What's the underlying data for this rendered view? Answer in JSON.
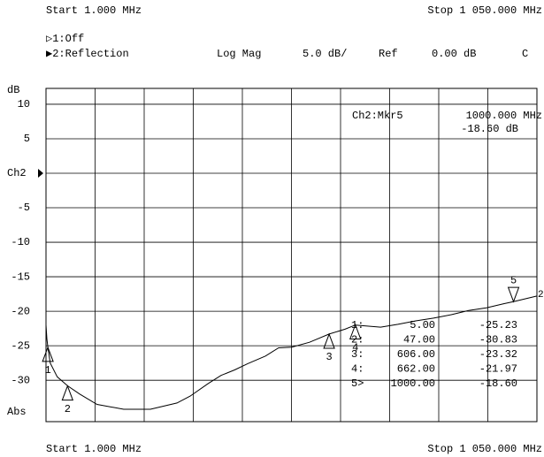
{
  "chart_data": {
    "type": "line",
    "start_label": "Start 1.000 MHz",
    "stop_label": "Stop 1 050.000 MHz",
    "channel1": "▷1:Off",
    "channel2": "▶2:Reflection",
    "format": "Log Mag",
    "scale": "5.0 dB/",
    "ref": "Ref",
    "ref_value": "0.00 dB",
    "coupling": "C",
    "y_unit": "dB",
    "abs_label": "Abs",
    "trace_label": "2",
    "readout": {
      "title": "Ch2:Mkr5",
      "x": "1000.000 MHz",
      "value": "-18.60 dB"
    },
    "xlim": [
      1,
      1050
    ],
    "ylim": [
      -36,
      12.3
    ],
    "yticks": [
      10,
      5,
      {
        "value": 0,
        "label": "Ch2"
      },
      -5,
      -10,
      -15,
      -20,
      -25,
      -30
    ],
    "grid": true,
    "series": [
      {
        "name": "2",
        "color": "#000000",
        "x": [
          1,
          2.9,
          5,
          10,
          25,
          47,
          73,
          110,
          167,
          224,
          281,
          309,
          347,
          375,
          404,
          432,
          470,
          498,
          526,
          564,
          606,
          640,
          662,
          716,
          753,
          791,
          829,
          867,
          904,
          942,
          980,
          1000,
          1050
        ],
        "values": [
          -22,
          -24,
          -25.2,
          -27.5,
          -29.5,
          -30.8,
          -32,
          -33.5,
          -34.2,
          -34.2,
          -33.3,
          -32.3,
          -30.5,
          -29.3,
          -28.5,
          -27.6,
          -26.5,
          -25.3,
          -25.2,
          -24.5,
          -23.3,
          -22.6,
          -22,
          -22.3,
          -21.9,
          -21.4,
          -21,
          -20.5,
          -19.9,
          -19.5,
          -18.9,
          -18.6,
          -17.8
        ]
      }
    ],
    "markers": {
      "names": [
        "1",
        "2",
        "3",
        "4",
        "5"
      ],
      "ids": [
        "1:",
        "2:",
        "3:",
        "4:",
        "5>"
      ],
      "x": [
        5,
        47,
        606,
        662,
        1000
      ],
      "x_labels": [
        "5.00",
        "47.00",
        "606.00",
        "662.00",
        "1000.00"
      ],
      "values": [
        -25.23,
        -30.83,
        -23.32,
        -21.97,
        -18.6
      ],
      "value_labels": [
        "-25.23",
        "-30.83",
        "-23.32",
        "-21.97",
        "-18.60"
      ]
    }
  }
}
